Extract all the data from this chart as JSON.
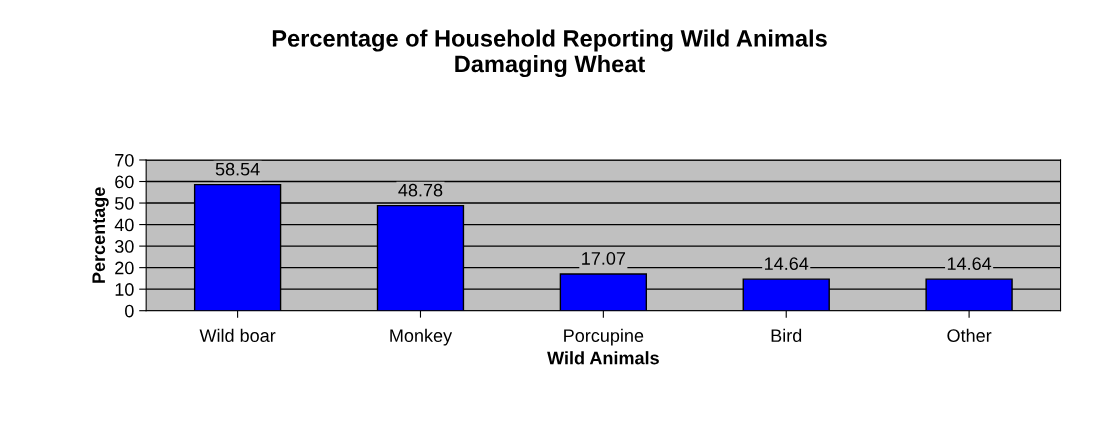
{
  "chart_data": {
    "type": "bar",
    "title": "Percentage of Household Reporting Wild Animals\nDamaging Wheat",
    "xlabel": "Wild Animals",
    "ylabel": "Percentage",
    "categories": [
      "Wild boar",
      "Monkey",
      "Porcupine",
      "Bird",
      "Other"
    ],
    "values": [
      58.54,
      48.78,
      17.07,
      14.64,
      14.64
    ],
    "color": "#0000ff",
    "ylim": [
      0,
      70
    ],
    "yticks": [
      0,
      10,
      20,
      30,
      40,
      50,
      60,
      70
    ],
    "grid": "y",
    "data_labels": true
  }
}
